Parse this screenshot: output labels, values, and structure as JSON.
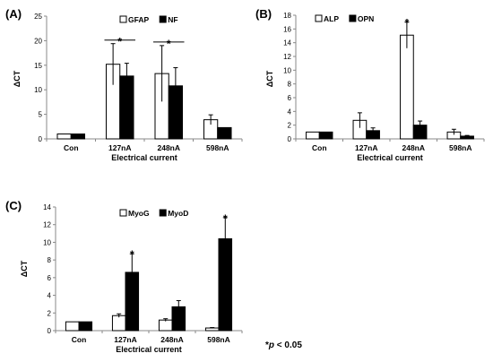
{
  "footnote": {
    "star": "*",
    "p": "p",
    "rest": " < 0.05"
  },
  "chart_data": [
    {
      "type": "bar",
      "panel_label": "(A)",
      "categories": [
        "Con",
        "127nA",
        "248nA",
        "598nA"
      ],
      "xlabel": "Electrical current",
      "ylabel": "ΔCT",
      "ylim": [
        0,
        25
      ],
      "yticks": [
        0,
        5,
        10,
        15,
        20,
        25
      ],
      "legend_position": "top-center",
      "series": [
        {
          "name": "GFAP",
          "fill": "#ffffff",
          "values": [
            1.0,
            15.2,
            13.3,
            3.9
          ],
          "errors": [
            0,
            4.2,
            5.7,
            1.0
          ]
        },
        {
          "name": "NF",
          "fill": "#000000",
          "values": [
            1.0,
            12.8,
            10.8,
            2.3
          ],
          "errors": [
            0,
            2.6,
            3.7,
            0
          ]
        }
      ],
      "significance": [
        {
          "category": "127nA",
          "marker": "*",
          "bracket": true
        },
        {
          "category": "248nA",
          "marker": "*",
          "bracket": true
        }
      ]
    },
    {
      "type": "bar",
      "panel_label": "(B)",
      "categories": [
        "Con",
        "127nA",
        "248nA",
        "598nA"
      ],
      "xlabel": "Electrical current",
      "ylabel": "ΔCT",
      "ylim": [
        0,
        18
      ],
      "yticks": [
        0,
        2,
        4,
        6,
        8,
        10,
        12,
        14,
        16,
        18
      ],
      "legend_position": "top-left",
      "series": [
        {
          "name": "ALP",
          "fill": "#ffffff",
          "values": [
            1.0,
            2.7,
            15.1,
            1.0
          ],
          "errors": [
            0,
            1.1,
            1.9,
            0.4
          ]
        },
        {
          "name": "OPN",
          "fill": "#000000",
          "values": [
            1.0,
            1.2,
            2.0,
            0.4
          ],
          "errors": [
            0,
            0.4,
            0.6,
            0.1
          ]
        }
      ],
      "significance": [
        {
          "category": "248nA",
          "marker": "*",
          "bracket": false
        }
      ]
    },
    {
      "type": "bar",
      "panel_label": "(C)",
      "categories": [
        "Con",
        "127nA",
        "248nA",
        "598nA"
      ],
      "xlabel": "Electrical current",
      "ylabel": "ΔCT",
      "ylim": [
        0,
        14
      ],
      "yticks": [
        0,
        2,
        4,
        6,
        8,
        10,
        12,
        14
      ],
      "legend_position": "top-center",
      "series": [
        {
          "name": "MyoG",
          "fill": "#ffffff",
          "values": [
            1.0,
            1.7,
            1.2,
            0.3
          ],
          "errors": [
            0,
            0.2,
            0.15,
            0.05
          ]
        },
        {
          "name": "MyoD",
          "fill": "#000000",
          "values": [
            1.0,
            6.6,
            2.7,
            10.4
          ],
          "errors": [
            0,
            2.1,
            0.7,
            2.4
          ]
        }
      ],
      "significance": [
        {
          "category": "127nA",
          "marker": "*",
          "bracket": false
        },
        {
          "category": "598nA",
          "marker": "*",
          "bracket": false
        }
      ]
    }
  ]
}
